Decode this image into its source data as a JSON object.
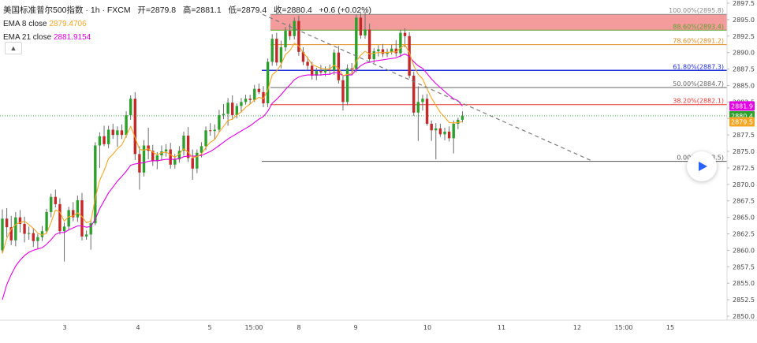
{
  "legend": {
    "symbol": "美国标准普尔500指数 · 1h · FXCM",
    "open_label": "开",
    "open": "2879.8",
    "high_label": "高",
    "high": "2881.1",
    "low_label": "低",
    "low": "2879.4",
    "close_label": "收",
    "close": "2880.4",
    "change": "+0.6 (+0.02%)",
    "ema8_label": "EMA 8 close",
    "ema8_value": "2879.4706",
    "ema21_label": "EMA 21 close",
    "ema21_value": "2881.9154"
  },
  "collapse_icon": "chevron-up-icon",
  "play_icon": "play-icon",
  "colors": {
    "up": "#26a69a",
    "up_fill": "#2ca02c",
    "down": "#c62828",
    "ema8": "#f5a623",
    "ema21": "#e400e4",
    "fib_zone": "#f28b8b",
    "current_line": "#4caf50"
  },
  "chart_data": {
    "type": "candlestick",
    "symbol": "美国标准普尔500指数",
    "interval": "1h",
    "ylim": [
      2850.0,
      2897.5
    ],
    "y_ticks": [
      "2897.5",
      "2895.0",
      "2892.5",
      "2890.0",
      "2887.5",
      "2885.0",
      "2882.5",
      "2880.0",
      "2877.5",
      "2875.0",
      "2872.5",
      "2870.0",
      "2867.5",
      "2865.0",
      "2862.5",
      "2860.0",
      "2857.5",
      "2855.0",
      "2852.5",
      "2850.0"
    ],
    "x_ticks": [
      "3",
      "4",
      "5",
      "15:00",
      "8",
      "9",
      "10",
      "11",
      "12",
      "15:00",
      "15"
    ],
    "price_badges": [
      {
        "label": "2881.9",
        "color": "#e400e4"
      },
      {
        "label": "2880.4",
        "color": "#2ca02c"
      },
      {
        "label": "2879.5",
        "color": "#f5a623"
      }
    ],
    "fibonacci": [
      {
        "label": "100.00%(2895.8)",
        "value": 2895.8,
        "color": "#888888"
      },
      {
        "label": "88.60%(2893.4)",
        "value": 2893.4,
        "color": "#5aa02c"
      },
      {
        "label": "78.60%(2891.2)",
        "value": 2891.2,
        "color": "#e08a1e"
      },
      {
        "label": "61.80%(2887.3)",
        "value": 2887.3,
        "color": "#1f2fd6"
      },
      {
        "label": "50.00%(2884.7)",
        "value": 2884.7,
        "color": "#666666"
      },
      {
        "label": "38.20%(2882.1)",
        "value": 2882.1,
        "color": "#e53935"
      },
      {
        "label": "0.00%(2873.5)",
        "value": 2873.5,
        "color": "#555555"
      }
    ],
    "trendline": {
      "from": [
        2895.8
      ],
      "to": [
        2873.6
      ]
    },
    "current_price": 2880.4,
    "ohlc": [
      [
        2860.0,
        2866.2,
        2859.6,
        2864.8
      ],
      [
        2864.8,
        2866.4,
        2862.0,
        2863.5
      ],
      [
        2863.5,
        2865.2,
        2860.8,
        2861.5
      ],
      [
        2861.5,
        2865.8,
        2860.6,
        2865.0
      ],
      [
        2865.0,
        2866.1,
        2862.7,
        2864.0
      ],
      [
        2864.0,
        2865.1,
        2861.2,
        2862.5
      ],
      [
        2862.5,
        2863.6,
        2861.6,
        2862.6
      ],
      [
        2862.6,
        2863.4,
        2860.5,
        2861.4
      ],
      [
        2861.4,
        2862.5,
        2860.2,
        2862.0
      ],
      [
        2862.0,
        2863.7,
        2861.4,
        2862.9
      ],
      [
        2862.9,
        2866.3,
        2862.5,
        2865.8
      ],
      [
        2865.8,
        2868.6,
        2865.0,
        2868.1
      ],
      [
        2868.1,
        2869.2,
        2866.5,
        2867.0
      ],
      [
        2867.0,
        2867.9,
        2862.4,
        2862.9
      ],
      [
        2862.9,
        2864.2,
        2858.3,
        2863.6
      ],
      [
        2863.6,
        2866.6,
        2863.0,
        2866.1
      ],
      [
        2866.1,
        2867.3,
        2864.4,
        2865.0
      ],
      [
        2865.0,
        2868.3,
        2864.3,
        2867.6
      ],
      [
        2867.6,
        2868.7,
        2861.5,
        2862.1
      ],
      [
        2862.1,
        2863.0,
        2861.6,
        2862.4
      ],
      [
        2862.4,
        2864.7,
        2860.1,
        2864.1
      ],
      [
        2864.1,
        2876.4,
        2863.8,
        2875.9
      ],
      [
        2875.9,
        2877.9,
        2872.5,
        2877.3
      ],
      [
        2877.3,
        2878.9,
        2875.8,
        2876.1
      ],
      [
        2876.1,
        2878.9,
        2875.5,
        2878.3
      ],
      [
        2878.3,
        2879.2,
        2876.9,
        2877.5
      ],
      [
        2877.5,
        2878.8,
        2875.7,
        2878.2
      ],
      [
        2878.2,
        2879.1,
        2876.9,
        2877.5
      ],
      [
        2877.5,
        2881.1,
        2877.1,
        2880.5
      ],
      [
        2880.5,
        2883.5,
        2879.8,
        2883.0
      ],
      [
        2883.0,
        2884.0,
        2873.7,
        2874.6
      ],
      [
        2874.6,
        2875.8,
        2869.2,
        2871.8
      ],
      [
        2871.8,
        2876.7,
        2871.2,
        2875.9
      ],
      [
        2875.9,
        2878.6,
        2873.8,
        2875.1
      ],
      [
        2875.1,
        2876.0,
        2872.8,
        2873.5
      ],
      [
        2873.5,
        2874.9,
        2872.3,
        2874.4
      ],
      [
        2874.4,
        2875.9,
        2873.6,
        2875.0
      ],
      [
        2875.0,
        2876.1,
        2874.2,
        2875.3
      ],
      [
        2875.3,
        2876.3,
        2872.4,
        2873.0
      ],
      [
        2873.0,
        2874.6,
        2872.4,
        2873.8
      ],
      [
        2873.8,
        2875.8,
        2873.3,
        2875.1
      ],
      [
        2875.1,
        2878.0,
        2874.4,
        2877.4
      ],
      [
        2877.4,
        2878.7,
        2873.4,
        2874.0
      ],
      [
        2874.0,
        2875.3,
        2870.7,
        2872.4
      ],
      [
        2872.4,
        2875.3,
        2871.7,
        2874.8
      ],
      [
        2874.8,
        2876.4,
        2874.1,
        2875.8
      ],
      [
        2875.8,
        2878.8,
        2875.2,
        2878.2
      ],
      [
        2878.2,
        2879.3,
        2877.4,
        2878.1
      ],
      [
        2878.1,
        2879.1,
        2876.8,
        2878.3
      ],
      [
        2878.3,
        2881.3,
        2877.9,
        2880.5
      ],
      [
        2880.5,
        2882.2,
        2879.9,
        2880.7
      ],
      [
        2880.7,
        2883.1,
        2878.9,
        2882.4
      ],
      [
        2882.4,
        2883.5,
        2879.8,
        2880.5
      ],
      [
        2880.5,
        2882.3,
        2880.0,
        2881.9
      ],
      [
        2881.9,
        2883.1,
        2880.9,
        2882.5
      ],
      [
        2882.5,
        2883.6,
        2882.1,
        2883.0
      ],
      [
        2883.0,
        2883.6,
        2882.2,
        2882.8
      ],
      [
        2882.8,
        2885.1,
        2882.5,
        2884.5
      ],
      [
        2884.5,
        2885.3,
        2883.7,
        2884.0
      ],
      [
        2884.0,
        2884.9,
        2881.7,
        2882.3
      ],
      [
        2882.3,
        2889.1,
        2881.7,
        2888.6
      ],
      [
        2888.6,
        2892.8,
        2888.0,
        2892.1
      ],
      [
        2892.1,
        2893.0,
        2888.0,
        2888.5
      ],
      [
        2888.5,
        2891.8,
        2887.6,
        2890.8
      ],
      [
        2890.8,
        2893.9,
        2890.2,
        2893.3
      ],
      [
        2893.3,
        2894.4,
        2891.9,
        2892.5
      ],
      [
        2892.5,
        2895.3,
        2892.0,
        2894.8
      ],
      [
        2894.8,
        2895.6,
        2889.5,
        2890.1
      ],
      [
        2890.1,
        2890.8,
        2888.1,
        2888.6
      ],
      [
        2888.6,
        2889.4,
        2887.3,
        2888.0
      ],
      [
        2888.0,
        2888.6,
        2885.9,
        2886.5
      ],
      [
        2886.5,
        2887.7,
        2885.8,
        2887.2
      ],
      [
        2887.2,
        2888.1,
        2886.5,
        2887.0
      ],
      [
        2887.0,
        2887.9,
        2886.4,
        2887.4
      ],
      [
        2887.4,
        2888.2,
        2886.7,
        2887.3
      ],
      [
        2887.3,
        2890.5,
        2886.6,
        2890.0
      ],
      [
        2890.0,
        2891.0,
        2885.3,
        2885.8
      ],
      [
        2885.8,
        2886.5,
        2881.2,
        2882.5
      ],
      [
        2882.5,
        2888.2,
        2882.0,
        2887.6
      ],
      [
        2887.6,
        2888.4,
        2886.7,
        2887.5
      ],
      [
        2887.5,
        2895.8,
        2887.0,
        2895.3
      ],
      [
        2895.3,
        2896.0,
        2892.1,
        2892.6
      ],
      [
        2892.6,
        2896.2,
        2892.1,
        2893.5
      ],
      [
        2893.5,
        2894.4,
        2888.5,
        2889.0
      ],
      [
        2889.0,
        2890.7,
        2888.4,
        2890.2
      ],
      [
        2890.2,
        2891.1,
        2889.4,
        2890.5
      ],
      [
        2890.5,
        2891.3,
        2889.3,
        2889.8
      ],
      [
        2889.8,
        2890.6,
        2889.3,
        2890.1
      ],
      [
        2890.1,
        2891.2,
        2889.7,
        2890.6
      ],
      [
        2890.6,
        2891.9,
        2889.4,
        2889.9
      ],
      [
        2889.9,
        2893.5,
        2889.3,
        2893.0
      ],
      [
        2893.0,
        2893.7,
        2890.8,
        2892.5
      ],
      [
        2892.5,
        2893.1,
        2886.1,
        2886.5
      ],
      [
        2886.5,
        2887.1,
        2880.4,
        2880.9
      ],
      [
        2880.9,
        2884.9,
        2876.6,
        2882.5
      ],
      [
        2882.5,
        2883.6,
        2881.2,
        2883.0
      ],
      [
        2883.0,
        2883.7,
        2878.9,
        2879.2
      ],
      [
        2879.2,
        2879.7,
        2876.6,
        2878.2
      ],
      [
        2878.2,
        2879.3,
        2873.8,
        2878.5
      ],
      [
        2878.5,
        2879.2,
        2877.2,
        2877.6
      ],
      [
        2877.6,
        2878.6,
        2876.7,
        2878.0
      ],
      [
        2878.0,
        2878.8,
        2876.5,
        2877.0
      ],
      [
        2877.0,
        2879.7,
        2874.7,
        2879.2
      ],
      [
        2879.2,
        2880.1,
        2878.4,
        2879.8
      ],
      [
        2879.8,
        2881.1,
        2879.4,
        2880.4
      ]
    ],
    "ema8": [
      2859.5,
      2861.8,
      2863.2,
      2863.9,
      2864.2,
      2864.4,
      2863.9,
      2863.3,
      2862.6,
      2862.3,
      2862.6,
      2864.2,
      2866.1,
      2865.8,
      2864.4,
      2865.1,
      2865.2,
      2865.7,
      2865.1,
      2864.2,
      2864.4,
      2867.9,
      2870.6,
      2872.1,
      2873.9,
      2874.6,
      2875.4,
      2876.0,
      2877.4,
      2878.8,
      2877.1,
      2875.3,
      2875.2,
      2875.4,
      2874.9,
      2874.5,
      2874.8,
      2874.9,
      2874.5,
      2874.1,
      2874.6,
      2875.4,
      2874.9,
      2874.1,
      2874.2,
      2874.6,
      2875.6,
      2876.4,
      2876.8,
      2877.9,
      2878.8,
      2879.7,
      2879.9,
      2880.5,
      2881.0,
      2881.7,
      2882.2,
      2882.8,
      2883.2,
      2883.0,
      2884.3,
      2886.6,
      2887.2,
      2888.2,
      2889.7,
      2890.3,
      2891.4,
      2891.0,
      2890.0,
      2889.2,
      2888.2,
      2887.9,
      2887.6,
      2887.5,
      2887.5,
      2888.1,
      2887.6,
      2886.5,
      2886.7,
      2886.8,
      2888.7,
      2889.6,
      2890.2,
      2889.8,
      2889.9,
      2890.0,
      2890.0,
      2890.0,
      2890.1,
      2890.1,
      2890.7,
      2891.2,
      2890.0,
      2888.0,
      2886.7,
      2886.0,
      2884.5,
      2883.1,
      2882.0,
      2880.9,
      2880.2,
      2879.4,
      2879.3,
      2879.4,
      2879.5
    ],
    "ema21": [
      2852.5,
      2854.8,
      2856.3,
      2857.6,
      2858.5,
      2859.2,
      2859.7,
      2860.0,
      2860.2,
      2860.4,
      2860.9,
      2861.6,
      2862.4,
      2862.7,
      2862.7,
      2863.1,
      2863.4,
      2863.7,
      2863.7,
      2863.5,
      2863.6,
      2864.7,
      2866.3,
      2867.5,
      2868.7,
      2869.6,
      2870.5,
      2871.2,
      2872.0,
      2872.9,
      2873.1,
      2873.2,
      2873.3,
      2873.5,
      2873.6,
      2873.6,
      2873.7,
      2873.8,
      2873.8,
      2873.8,
      2873.9,
      2874.2,
      2874.3,
      2874.3,
      2874.3,
      2874.4,
      2874.7,
      2875.0,
      2875.4,
      2875.9,
      2876.4,
      2876.9,
      2877.3,
      2877.7,
      2878.1,
      2878.5,
      2878.9,
      2879.4,
      2879.9,
      2880.3,
      2881.1,
      2882.3,
      2882.9,
      2883.6,
      2884.4,
      2885.1,
      2885.9,
      2886.3,
      2886.5,
      2886.6,
      2886.6,
      2886.6,
      2886.6,
      2886.7,
      2886.7,
      2887.0,
      2886.9,
      2886.5,
      2886.6,
      2886.6,
      2887.4,
      2888.0,
      2888.4,
      2888.5,
      2888.7,
      2888.8,
      2888.9,
      2889.0,
      2889.1,
      2889.2,
      2889.5,
      2889.8,
      2889.4,
      2888.6,
      2888.0,
      2887.6,
      2886.8,
      2886.0,
      2885.3,
      2884.7,
      2884.1,
      2883.5,
      2883.0,
      2882.7,
      2881.9
    ]
  }
}
